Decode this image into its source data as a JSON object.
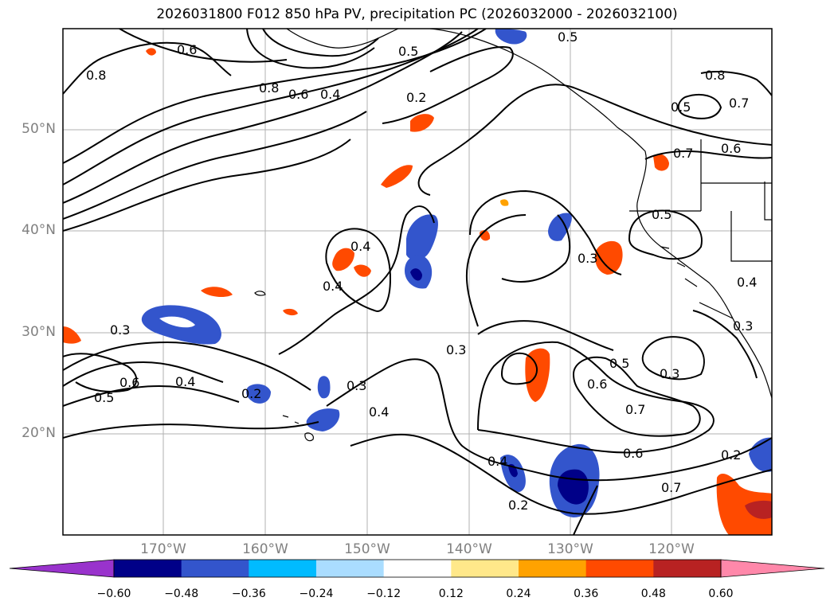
{
  "title": "2026031800 F012 850 hPa PV, precipitation PC (2026032000 - 2026032100)",
  "lat_labels": [
    "50°N",
    "40°N",
    "30°N",
    "20°N"
  ],
  "lon_labels": [
    "170°W",
    "160°W",
    "150°W",
    "140°W",
    "130°W",
    "120°W"
  ],
  "contour_labels": [
    "0.6",
    "0.8",
    "0.8",
    "0.6",
    "0.4",
    "0.5",
    "0.2",
    "0.5",
    "0.8",
    "0.7",
    "0.5",
    "0.7",
    "0.6",
    "0.4",
    "0.5",
    "0.3",
    "0.3",
    "0.4",
    "0.3",
    "0.6",
    "0.5",
    "0.4",
    "0.2",
    "0.3",
    "0.4",
    "0.4",
    "0.2",
    "0.6",
    "0.5",
    "0.3",
    "0.7",
    "0.6",
    "0.2",
    "0.4",
    "0.3",
    "0.7"
  ],
  "colorbar": {
    "ticks": [
      "−0.60",
      "−0.48",
      "−0.36",
      "−0.24",
      "−0.12",
      "0.12",
      "0.24",
      "0.36",
      "0.48",
      "0.60"
    ],
    "colors": [
      "#9933cc",
      "#000088",
      "#3355cc",
      "#00bbff",
      "#aaddff",
      "#ffffff",
      "#ffe88a",
      "#ffa200",
      "#ff4a00",
      "#b82222",
      "#ff88aa"
    ]
  },
  "colors": {
    "land_outline": "#000000",
    "grid": "#b0b0b0",
    "axis_label": "#808080"
  }
}
